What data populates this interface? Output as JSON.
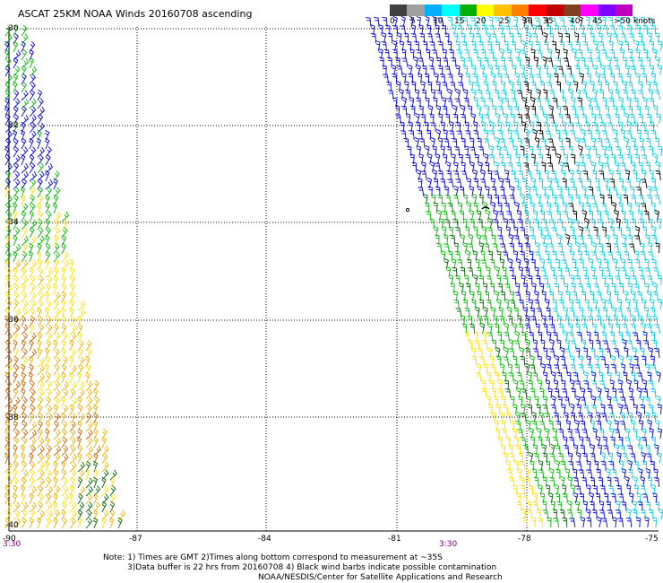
{
  "title": "ASCAT 25KM NOAA Winds 20160708 ascending",
  "legend": {
    "colors": [
      "#404040",
      "#a0a0a0",
      "#00b0ff",
      "#00ffff",
      "#00b000",
      "#ffff00",
      "#ffc000",
      "#ff8000",
      "#ff0000",
      "#c00000",
      "#804020",
      "#ff00ff",
      "#8000ff",
      "#c000c0"
    ],
    "tick_labels": [
      "0",
      "5",
      "10",
      "15",
      "20",
      "25",
      "30",
      "35",
      "40",
      "45",
      ">50 knots"
    ]
  },
  "lat_labels": [
    "-30",
    "-32",
    "-34",
    "-36",
    "-38",
    "-40"
  ],
  "lon_labels": [
    "-90",
    "-87",
    "-84",
    "-81",
    "-78",
    "-75"
  ],
  "time_labels": [
    "3:30",
    "3:30"
  ],
  "notes": [
    "Note: 1) Times are GMT 2)Times along bottom correspond to measurement at ~35S",
    "3)Data buffer is 22 hrs from 20160708 4) Black wind barbs indicate possible contamination",
    "NOAA/NESDIS/Center for Satellite Applications and Research"
  ],
  "colors": {
    "black": "#000000",
    "blue": "#0000dd",
    "cyan": "#00ccdd",
    "green": "#00b800",
    "darkgreen": "#006400",
    "yellow": "#ffe000",
    "orange": "#f0b000",
    "brown": "#d06000"
  }
}
